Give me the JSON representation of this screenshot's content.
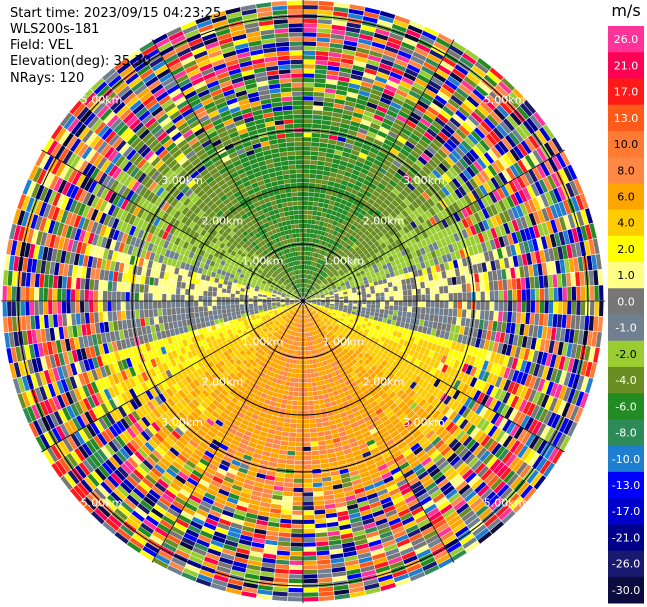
{
  "header": {
    "start_time": "Start time: 2023/09/15 04:23:25",
    "instrument": "WLS200s-181",
    "field": "Field: VEL",
    "elevation": "Elevation(deg): 35.30",
    "nrays": "NRays: 120"
  },
  "chart_data": {
    "type": "heatmap",
    "projection": "polar-ppi",
    "field": "VEL",
    "units": "m/s",
    "range_rings_km": [
      1.0,
      2.0,
      3.0,
      5.0
    ],
    "ring_labels": [
      "1.00km",
      "2.00km",
      "3.00km",
      "5.00km"
    ],
    "max_range_km": 5.3,
    "n_rays": 120,
    "elevation_deg": 35.3,
    "colorbar": {
      "title": "m/s",
      "ticks": [
        "26.0",
        "21.0",
        "17.0",
        "13.0",
        "10.0",
        "8.0",
        "6.0",
        "4.0",
        "2.0",
        "1.0",
        "0.0",
        "-1.0",
        "-2.0",
        "-4.0",
        "-6.0",
        "-8.0",
        "-10.0",
        "-13.0",
        "-17.0",
        "-21.0",
        "-26.0",
        "-30.0"
      ],
      "colors": [
        "#ff3399",
        "#ff0055",
        "#ff1a1a",
        "#ff5a1a",
        "#ff7a33",
        "#ff8844",
        "#ffa500",
        "#ffcc00",
        "#ffff00",
        "#ffff88",
        "#777777",
        "#708090",
        "#9acd32",
        "#6b8e23",
        "#228b22",
        "#2e8b57",
        "#1e7fd0",
        "#0000ff",
        "#0000cd",
        "#00008b",
        "#191970",
        "#0b0b40"
      ]
    },
    "pattern_summary": {
      "north_sector": "negative velocities (-2 to -6 m/s, green)",
      "south_sector": "positive velocities (4 to 8 m/s, yellow/orange)",
      "east_west_band": "near zero (-1 to 1 m/s, gray)",
      "outer_range": "noisy mixed values"
    }
  }
}
